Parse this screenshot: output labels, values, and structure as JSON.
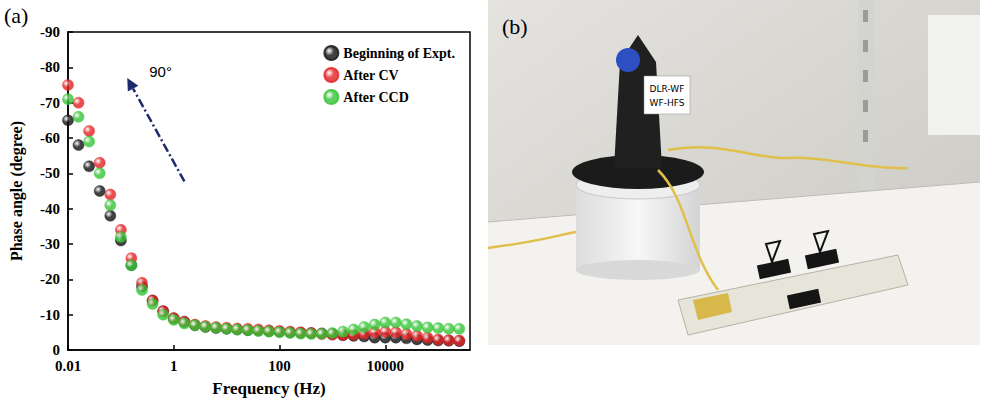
{
  "chart_data": {
    "type": "scatter",
    "x_label": "Frequency (Hz)",
    "y_label": "Phase angle (degree)",
    "log": "x",
    "grid": false,
    "legend": "upper right",
    "marker": "circle",
    "annotations": [
      "(a)",
      "90°"
    ],
    "xlim": [
      0.01,
      400000
    ],
    "xticks": [
      0.01,
      1,
      100,
      10000
    ],
    "ylim": [
      -90,
      0
    ],
    "yticks": [
      -90,
      -80,
      -70,
      -60,
      -50,
      -40,
      -30,
      -20,
      -10,
      0
    ],
    "x": [
      0.01,
      0.0158,
      0.0251,
      0.0398,
      0.0631,
      0.1,
      0.158,
      0.251,
      0.398,
      0.631,
      1,
      1.585,
      2.512,
      3.981,
      6.31,
      10,
      15.85,
      25.12,
      39.81,
      63.1,
      100,
      158.5,
      251.2,
      398.1,
      631,
      1000,
      1585,
      2512,
      3981,
      6310,
      10000,
      15850,
      25120,
      39810,
      63100,
      100000,
      158500,
      251200
    ],
    "series": [
      {
        "name": "Beginning of Expt.",
        "color": "#111111",
        "values": [
          -65,
          -58,
          -52,
          -45,
          -38,
          -31,
          -24,
          -18,
          -14,
          -11,
          -9,
          -8,
          -7,
          -6.5,
          -6.2,
          -6,
          -5.8,
          -5.6,
          -5.5,
          -5.3,
          -5.2,
          -5,
          -4.9,
          -4.8,
          -4.7,
          -4.5,
          -4.2,
          -4,
          -3.8,
          -3.5,
          -3.5,
          -3.5,
          -3.3,
          -3,
          -2.8,
          -2.7,
          -2.6,
          -2.5
        ]
      },
      {
        "name": "After CV",
        "color": "#e32222",
        "values": [
          -75,
          -70,
          -62,
          -53,
          -44,
          -34,
          -26,
          -19,
          -14,
          -11,
          -9,
          -8,
          -7.2,
          -6.8,
          -6.5,
          -6.3,
          -6.1,
          -6,
          -5.8,
          -5.6,
          -5.4,
          -5.2,
          -5,
          -4.8,
          -4.5,
          -4.3,
          -4.2,
          -4.3,
          -4.6,
          -5,
          -5.2,
          -5,
          -4.5,
          -4,
          -3.5,
          -3,
          -2.8,
          -2.7
        ]
      },
      {
        "name": "After CCD",
        "color": "#35c435",
        "values": [
          -71,
          -66,
          -59,
          -50,
          -41,
          -32,
          -24,
          -17,
          -13,
          -10,
          -8.5,
          -7.5,
          -7,
          -6.6,
          -6.3,
          -6,
          -5.8,
          -5.6,
          -5.4,
          -5.2,
          -5,
          -4.8,
          -4.6,
          -4.5,
          -4.6,
          -4.8,
          -5.2,
          -5.8,
          -6.5,
          -7.2,
          -7.8,
          -7.8,
          -7.3,
          -6.8,
          -6.4,
          -6.2,
          -6,
          -6
        ]
      }
    ]
  },
  "photo": {
    "label": "(b)",
    "sticker": [
      "DLR-WF",
      "WF-HFS"
    ]
  }
}
